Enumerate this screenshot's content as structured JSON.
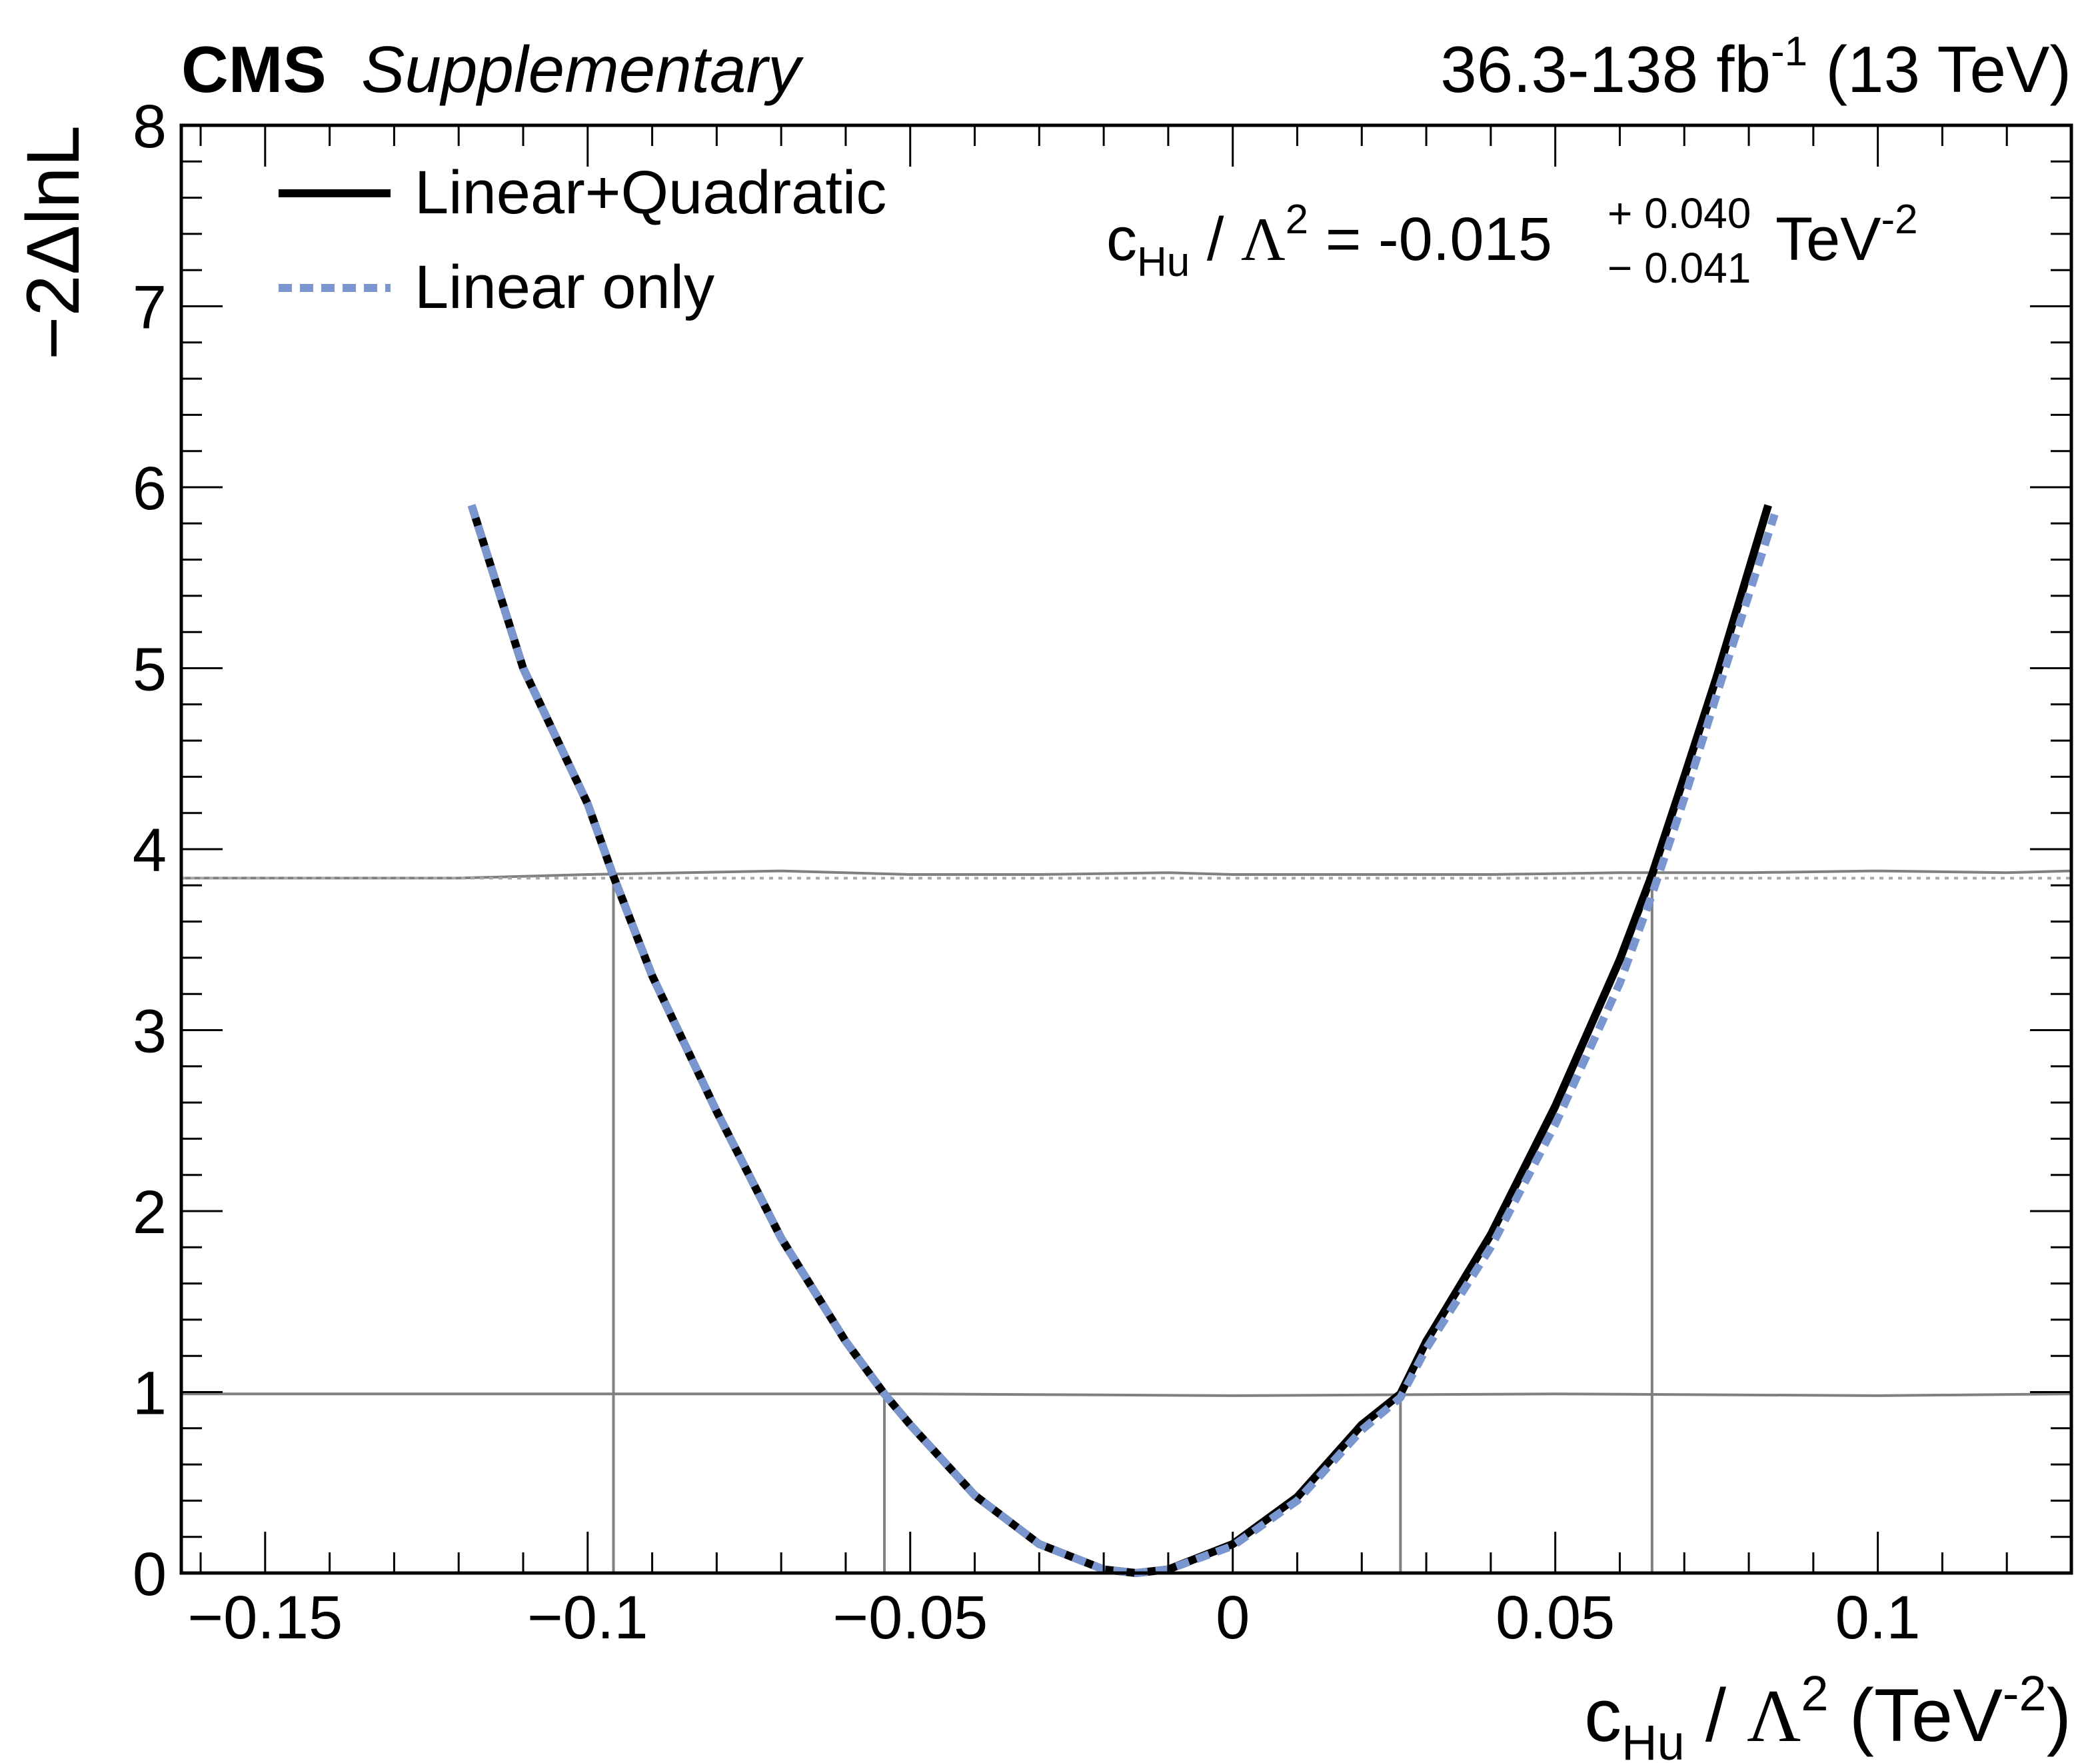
{
  "header": {
    "experiment": "CMS",
    "label": "Supplementary",
    "lumi_prefix": "36.3-138 fb",
    "lumi_exp": "-1",
    "energy": " (13 TeV)"
  },
  "result": {
    "c": "c",
    "sub": "Hu",
    "slash": " / ",
    "lambda": "Λ",
    "lambda_exp": "2",
    "equals_value": " = -0.015",
    "err_up": "+ 0.040",
    "err_down": "− 0.041",
    "unit": "TeV",
    "unit_exp": "-2"
  },
  "axes": {
    "ylabel": "−2ΔlnL",
    "xlabel": {
      "c": "c",
      "sub": "Hu",
      "slash": " / ",
      "lambda": "Λ",
      "lambda_exp": "2",
      "open": " (TeV",
      "exp": "-2",
      "close": ")"
    }
  },
  "chart_data": {
    "type": "line",
    "xlim": [
      -0.163,
      0.13
    ],
    "ylim": [
      0,
      8
    ],
    "x_ticks": [
      {
        "value": -0.15,
        "label": "−0.15"
      },
      {
        "value": -0.1,
        "label": "−0.1"
      },
      {
        "value": -0.05,
        "label": "−0.05"
      },
      {
        "value": 0,
        "label": "0"
      },
      {
        "value": 0.05,
        "label": "0.05"
      },
      {
        "value": 0.1,
        "label": "0.1"
      }
    ],
    "y_ticks": [
      {
        "value": 0,
        "label": "0"
      },
      {
        "value": 1,
        "label": "1"
      },
      {
        "value": 2,
        "label": "2"
      },
      {
        "value": 3,
        "label": "3"
      },
      {
        "value": 4,
        "label": "4"
      },
      {
        "value": 5,
        "label": "5"
      },
      {
        "value": 6,
        "label": "6"
      },
      {
        "value": 7,
        "label": "7"
      },
      {
        "value": 8,
        "label": "8"
      }
    ],
    "legend_position": "top-left",
    "series": [
      {
        "name": "Linear+Quadratic",
        "style": "solid",
        "color": "#000000",
        "x": [
          -0.118,
          -0.11,
          -0.1,
          -0.096,
          -0.09,
          -0.08,
          -0.07,
          -0.06,
          -0.054,
          -0.05,
          -0.04,
          -0.03,
          -0.02,
          -0.015,
          -0.01,
          0,
          0.01,
          0.02,
          0.026,
          0.03,
          0.04,
          0.05,
          0.06,
          0.065,
          0.07,
          0.075,
          0.083
        ],
        "y": [
          5.9,
          5.0,
          4.25,
          3.85,
          3.3,
          2.55,
          1.85,
          1.28,
          0.99,
          0.82,
          0.43,
          0.16,
          0.02,
          0.0,
          0.02,
          0.16,
          0.42,
          0.82,
          0.99,
          1.28,
          1.87,
          2.58,
          3.39,
          3.86,
          4.4,
          4.95,
          5.9
        ]
      },
      {
        "name": "Linear only",
        "style": "dashed",
        "color": "#7a96cf",
        "x": [
          -0.118,
          -0.11,
          -0.1,
          -0.096,
          -0.09,
          -0.08,
          -0.07,
          -0.06,
          -0.054,
          -0.05,
          -0.04,
          -0.03,
          -0.02,
          -0.015,
          -0.01,
          0,
          0.01,
          0.02,
          0.026,
          0.03,
          0.04,
          0.05,
          0.06,
          0.065,
          0.07,
          0.075,
          0.084
        ],
        "y": [
          5.9,
          5.0,
          4.25,
          3.85,
          3.3,
          2.55,
          1.85,
          1.28,
          0.99,
          0.82,
          0.43,
          0.16,
          0.02,
          0.0,
          0.02,
          0.15,
          0.4,
          0.79,
          0.97,
          1.24,
          1.8,
          2.48,
          3.26,
          3.75,
          4.28,
          4.85,
          5.85
        ]
      }
    ],
    "threshold_lines": [
      {
        "kind": "solid",
        "color": "#808080",
        "x": [
          -0.163,
          -0.12,
          -0.1,
          -0.07,
          -0.05,
          -0.03,
          -0.01,
          0.0,
          0.02,
          0.04,
          0.06,
          0.08,
          0.1,
          0.12,
          0.13
        ],
        "y": [
          3.84,
          3.84,
          3.86,
          3.88,
          3.86,
          3.86,
          3.87,
          3.86,
          3.86,
          3.86,
          3.87,
          3.87,
          3.88,
          3.87,
          3.88
        ]
      },
      {
        "kind": "dotted",
        "color": "#a8a8a8",
        "y": 3.84
      },
      {
        "kind": "solid",
        "color": "#808080",
        "x": [
          -0.163,
          -0.1,
          -0.05,
          0.0,
          0.05,
          0.1,
          0.13
        ],
        "y": [
          0.99,
          0.99,
          0.99,
          0.98,
          0.99,
          0.98,
          0.99
        ]
      }
    ],
    "crossings_95": [
      -0.096,
      0.065
    ],
    "crossings_68": [
      -0.054,
      0.026
    ]
  }
}
